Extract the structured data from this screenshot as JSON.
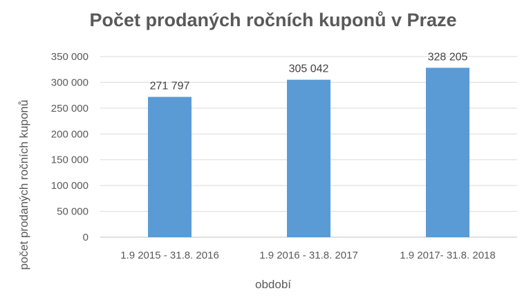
{
  "chart_data": {
    "type": "bar",
    "title": "Počet prodaných ročních kuponů v Praze",
    "xlabel": "období",
    "ylabel": "počet prodaných ročních kuponů",
    "categories": [
      "1.9 2015 - 31.8. 2016",
      "1.9 2016 - 31.8. 2017",
      "1.9 2017- 31.8. 2018"
    ],
    "values": [
      271797,
      305042,
      328205
    ],
    "data_labels": [
      "271 797",
      "305 042",
      "328 205"
    ],
    "ylim": [
      0,
      350000
    ],
    "yticks": [
      0,
      50000,
      100000,
      150000,
      200000,
      250000,
      300000,
      350000
    ],
    "ytick_labels": [
      "0",
      "50 000",
      "100 000",
      "150 000",
      "200 000",
      "250 000",
      "300 000",
      "350 000"
    ],
    "grid": true,
    "legend": "none",
    "bar_color": "#5b9bd5"
  }
}
